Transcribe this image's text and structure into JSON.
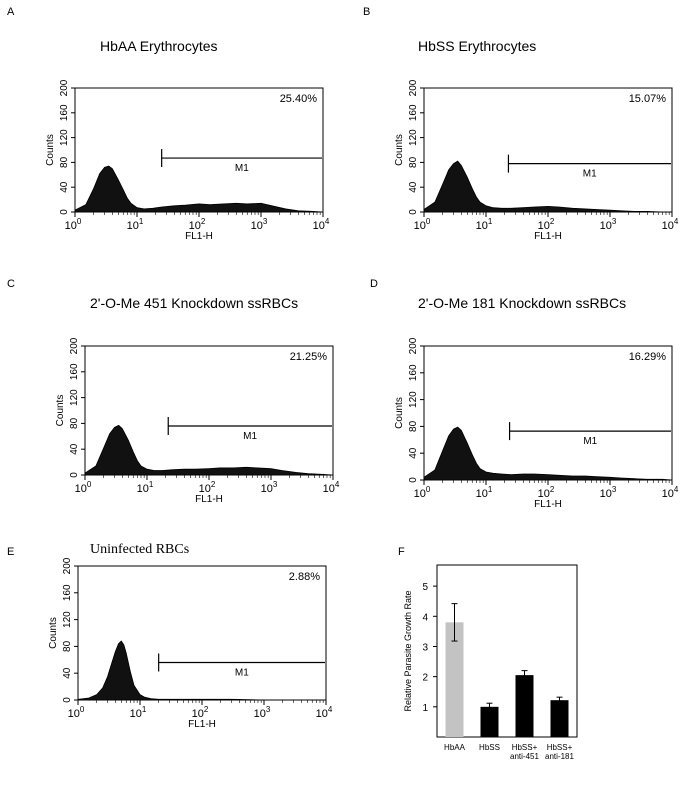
{
  "chart_data": [
    {
      "type": "area",
      "panel": "A",
      "title": "HbAA Erythrocytes",
      "xlabel": "FL1-H",
      "ylabel": "Counts",
      "xscale": "log",
      "xlim": [
        1,
        10000
      ],
      "ylim": [
        0,
        200
      ],
      "xticks": [
        {
          "base": "10",
          "exp": "0"
        },
        {
          "base": "10",
          "exp": "1"
        },
        {
          "base": "10",
          "exp": "2"
        },
        {
          "base": "10",
          "exp": "3"
        },
        {
          "base": "10",
          "exp": "4"
        }
      ],
      "yticks": [
        "0",
        "40",
        "80",
        "120",
        "160",
        "200"
      ],
      "percent": "25.40%",
      "gate": {
        "label": "M1",
        "from": 25,
        "to": 10000,
        "level": 87
      },
      "x": [
        1,
        1.5,
        2,
        2.5,
        3,
        3.5,
        4,
        5,
        6,
        7,
        8,
        10,
        13,
        18,
        25,
        40,
        60,
        100,
        150,
        250,
        400,
        600,
        1000,
        1500,
        2500,
        4000,
        7000,
        10000
      ],
      "values": [
        3,
        12,
        38,
        62,
        72,
        74,
        70,
        52,
        36,
        22,
        14,
        7,
        5,
        6,
        8,
        10,
        11,
        13,
        12,
        13,
        14,
        13,
        14,
        10,
        5,
        2,
        1,
        0
      ]
    },
    {
      "type": "area",
      "panel": "B",
      "title": "HbSS Erythrocytes",
      "xlabel": "FL1-H",
      "ylabel": "Counts",
      "xscale": "log",
      "xlim": [
        1,
        10000
      ],
      "ylim": [
        0,
        200
      ],
      "xticks": [
        {
          "base": "10",
          "exp": "0"
        },
        {
          "base": "10",
          "exp": "1"
        },
        {
          "base": "10",
          "exp": "2"
        },
        {
          "base": "10",
          "exp": "3"
        },
        {
          "base": "10",
          "exp": "4"
        }
      ],
      "yticks": [
        "0",
        "40",
        "80",
        "120",
        "160",
        "200"
      ],
      "percent": "15.07%",
      "gate": {
        "label": "M1",
        "from": 23,
        "to": 10000,
        "level": 78
      },
      "x": [
        1,
        1.5,
        2,
        2.5,
        3,
        3.5,
        4,
        5,
        6,
        7,
        8,
        10,
        13,
        18,
        25,
        40,
        60,
        100,
        150,
        250,
        400,
        600,
        1000,
        1500,
        2500,
        4000,
        7000,
        10000
      ],
      "values": [
        4,
        16,
        45,
        68,
        78,
        82,
        75,
        56,
        38,
        24,
        16,
        10,
        7,
        6,
        6,
        7,
        8,
        9,
        8,
        6,
        5,
        4,
        3,
        2,
        1,
        1,
        0,
        0
      ]
    },
    {
      "type": "area",
      "panel": "C",
      "title": "2'-O-Me 451 Knockdown ssRBCs",
      "xlabel": "FL1-H",
      "ylabel": "Counts",
      "xscale": "log",
      "xlim": [
        1,
        10000
      ],
      "ylim": [
        0,
        200
      ],
      "xticks": [
        {
          "base": "10",
          "exp": "0"
        },
        {
          "base": "10",
          "exp": "1"
        },
        {
          "base": "10",
          "exp": "2"
        },
        {
          "base": "10",
          "exp": "3"
        },
        {
          "base": "10",
          "exp": "4"
        }
      ],
      "yticks": [
        "0",
        "40",
        "80",
        "120",
        "160",
        "200"
      ],
      "percent": "21.25%",
      "gate": {
        "label": "M1",
        "from": 22,
        "to": 10000,
        "level": 76
      },
      "x": [
        1,
        1.5,
        2,
        2.5,
        3,
        3.5,
        4,
        5,
        6,
        7,
        8,
        10,
        13,
        18,
        25,
        40,
        60,
        100,
        150,
        250,
        400,
        600,
        1000,
        1500,
        2500,
        4000,
        7000,
        10000
      ],
      "values": [
        3,
        14,
        42,
        64,
        74,
        77,
        72,
        54,
        36,
        22,
        14,
        9,
        7,
        7,
        8,
        9,
        9,
        10,
        11,
        11,
        12,
        11,
        10,
        7,
        4,
        2,
        1,
        0
      ]
    },
    {
      "type": "area",
      "panel": "D",
      "title": "2'-O-Me 181 Knockdown ssRBCs",
      "xlabel": "FL1-H",
      "ylabel": "Counts",
      "xscale": "log",
      "xlim": [
        1,
        10000
      ],
      "ylim": [
        0,
        200
      ],
      "xticks": [
        {
          "base": "10",
          "exp": "0"
        },
        {
          "base": "10",
          "exp": "1"
        },
        {
          "base": "10",
          "exp": "2"
        },
        {
          "base": "10",
          "exp": "3"
        },
        {
          "base": "10",
          "exp": "4"
        }
      ],
      "yticks": [
        "0",
        "40",
        "80",
        "120",
        "160",
        "200"
      ],
      "percent": "16.29%",
      "gate": {
        "label": "M1",
        "from": 24,
        "to": 10000,
        "level": 73
      },
      "x": [
        1,
        1.5,
        2,
        2.5,
        3,
        3.5,
        4,
        5,
        6,
        7,
        8,
        10,
        13,
        18,
        25,
        40,
        60,
        100,
        150,
        250,
        400,
        600,
        1000,
        1500,
        2500,
        4000,
        7000,
        10000
      ],
      "values": [
        4,
        15,
        44,
        66,
        76,
        79,
        74,
        55,
        38,
        25,
        17,
        12,
        10,
        9,
        8,
        9,
        9,
        8,
        7,
        6,
        6,
        5,
        4,
        3,
        2,
        1,
        1,
        0
      ]
    },
    {
      "type": "area",
      "panel": "E",
      "title": "Uninfected RBCs",
      "xlabel": "FL1-H",
      "ylabel": "Counts",
      "xscale": "log",
      "xlim": [
        1,
        10000
      ],
      "ylim": [
        0,
        200
      ],
      "xticks": [
        {
          "base": "10",
          "exp": "0"
        },
        {
          "base": "10",
          "exp": "1"
        },
        {
          "base": "10",
          "exp": "2"
        },
        {
          "base": "10",
          "exp": "3"
        },
        {
          "base": "10",
          "exp": "4"
        }
      ],
      "yticks": [
        "0",
        "40",
        "80",
        "120",
        "160",
        "200"
      ],
      "percent": "2.88%",
      "gate": {
        "label": "M1",
        "from": 20,
        "to": 10000,
        "level": 56
      },
      "x": [
        1,
        1.5,
        2,
        2.5,
        3,
        3.5,
        4,
        4.5,
        5,
        5.5,
        6,
        7,
        8,
        10,
        12,
        15,
        20,
        30,
        50,
        100,
        300,
        1000,
        3000,
        10000
      ],
      "values": [
        1,
        3,
        8,
        18,
        35,
        55,
        72,
        84,
        88,
        82,
        70,
        42,
        22,
        8,
        4,
        2,
        1,
        1,
        1,
        1,
        1,
        0,
        0,
        0
      ]
    },
    {
      "type": "bar",
      "panel": "F",
      "title": "",
      "ylabel": "Relative Parasite Growth Rate",
      "ylim": [
        0,
        5.7
      ],
      "yticks": [
        "1",
        "2",
        "3",
        "4",
        "5"
      ],
      "categories": [
        [
          "HbAA"
        ],
        [
          "HbSS"
        ],
        [
          "HbSS+",
          "anti-451"
        ],
        [
          "HbSS+",
          "anti-181"
        ]
      ],
      "values": [
        3.8,
        1.0,
        2.05,
        1.22
      ],
      "errors": [
        0.62,
        0.12,
        0.15,
        0.1
      ],
      "colors": [
        "#c3c3c3",
        "#000000",
        "#000000",
        "#000000"
      ]
    }
  ]
}
